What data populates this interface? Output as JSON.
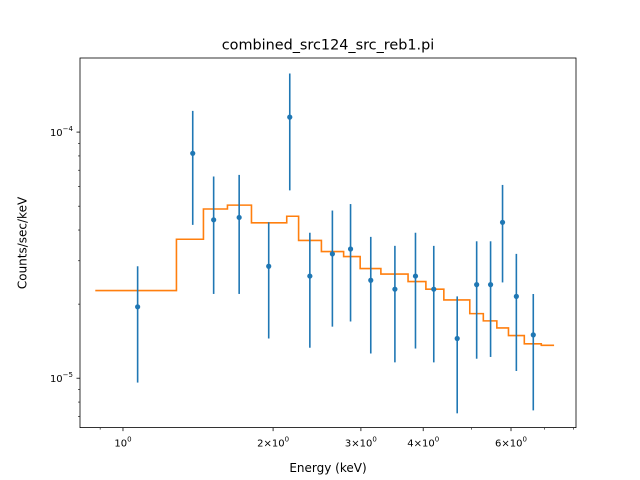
{
  "chart_data": {
    "type": "scatter",
    "title": "combined_src124_src_reb1.pi",
    "xlabel": "Energy (keV)",
    "ylabel": "Counts/sec/keV",
    "xscale": "log",
    "yscale": "log",
    "xlim": [
      0.82,
      8.1
    ],
    "ylim": [
      6.3e-06,
      0.0002
    ],
    "grid": false,
    "x_ticks": [
      {
        "value": 1.0,
        "label": "10^0",
        "base": "10",
        "exp": "0"
      },
      {
        "value": 2.0,
        "label": "2×10^0",
        "base": "2×10",
        "exp": "0"
      },
      {
        "value": 3.0,
        "label": "3×10^0",
        "base": "3×10",
        "exp": "0"
      },
      {
        "value": 4.0,
        "label": "4×10^0",
        "base": "4×10",
        "exp": "0"
      },
      {
        "value": 6.0,
        "label": "6×10^0",
        "base": "6×10",
        "exp": "0"
      }
    ],
    "x_minor_ticks": [
      0.9,
      5.0,
      7.0,
      8.0
    ],
    "y_ticks": [
      {
        "value": 1e-05,
        "label": "10^-5",
        "base": "10",
        "exp": "−5"
      },
      {
        "value": 0.0001,
        "label": "10^-4",
        "base": "10",
        "exp": "−4"
      }
    ],
    "y_minor_ticks": [
      7e-06,
      8e-06,
      9e-06,
      2e-05,
      3e-05,
      4e-05,
      5e-05,
      6e-05,
      7e-05,
      8e-05,
      9e-05
    ],
    "series": [
      {
        "kind": "errorbar",
        "color": "#1f77b4",
        "points": [
          {
            "x": 1.07,
            "y": 1.95e-05,
            "ylo": 9.6e-06,
            "yhi": 2.85e-05
          },
          {
            "x": 1.38,
            "y": 8.2e-05,
            "ylo": 4.2e-05,
            "yhi": 0.000122
          },
          {
            "x": 1.52,
            "y": 4.4e-05,
            "ylo": 2.2e-05,
            "yhi": 6.6e-05
          },
          {
            "x": 1.71,
            "y": 4.5e-05,
            "ylo": 2.2e-05,
            "yhi": 6.7e-05
          },
          {
            "x": 1.96,
            "y": 2.85e-05,
            "ylo": 1.45e-05,
            "yhi": 4.3e-05
          },
          {
            "x": 2.16,
            "y": 0.000115,
            "ylo": 5.8e-05,
            "yhi": 0.000173
          },
          {
            "x": 2.37,
            "y": 2.6e-05,
            "ylo": 1.33e-05,
            "yhi": 3.9e-05
          },
          {
            "x": 2.63,
            "y": 3.2e-05,
            "ylo": 1.62e-05,
            "yhi": 4.8e-05
          },
          {
            "x": 2.86,
            "y": 3.35e-05,
            "ylo": 1.7e-05,
            "yhi": 5.1e-05
          },
          {
            "x": 3.14,
            "y": 2.5e-05,
            "ylo": 1.26e-05,
            "yhi": 3.75e-05
          },
          {
            "x": 3.51,
            "y": 2.3e-05,
            "ylo": 1.16e-05,
            "yhi": 3.45e-05
          },
          {
            "x": 3.86,
            "y": 2.6e-05,
            "ylo": 1.32e-05,
            "yhi": 3.9e-05
          },
          {
            "x": 4.2,
            "y": 2.3e-05,
            "ylo": 1.16e-05,
            "yhi": 3.45e-05
          },
          {
            "x": 4.68,
            "y": 1.45e-05,
            "ylo": 7.2e-06,
            "yhi": 2.15e-05
          },
          {
            "x": 5.12,
            "y": 2.4e-05,
            "ylo": 1.2e-05,
            "yhi": 3.6e-05
          },
          {
            "x": 5.46,
            "y": 2.4e-05,
            "ylo": 1.22e-05,
            "yhi": 3.6e-05
          },
          {
            "x": 5.77,
            "y": 4.3e-05,
            "ylo": 2.45e-05,
            "yhi": 6.1e-05
          },
          {
            "x": 6.15,
            "y": 2.15e-05,
            "ylo": 1.07e-05,
            "yhi": 3.2e-05
          },
          {
            "x": 6.65,
            "y": 1.5e-05,
            "ylo": 7.4e-06,
            "yhi": 2.2e-05
          }
        ]
      },
      {
        "kind": "step",
        "color": "#ff7f0e",
        "bins": [
          {
            "lo": 0.88,
            "hi": 1.28,
            "y": 2.27e-05
          },
          {
            "lo": 1.28,
            "hi": 1.45,
            "y": 3.67e-05
          },
          {
            "lo": 1.45,
            "hi": 1.62,
            "y": 4.87e-05
          },
          {
            "lo": 1.62,
            "hi": 1.81,
            "y": 5.05e-05
          },
          {
            "lo": 1.81,
            "hi": 2.13,
            "y": 4.28e-05
          },
          {
            "lo": 2.13,
            "hi": 2.25,
            "y": 4.55e-05
          },
          {
            "lo": 2.25,
            "hi": 2.5,
            "y": 3.63e-05
          },
          {
            "lo": 2.5,
            "hi": 2.77,
            "y": 3.27e-05
          },
          {
            "lo": 2.77,
            "hi": 2.99,
            "y": 3.12e-05
          },
          {
            "lo": 2.99,
            "hi": 3.29,
            "y": 2.79e-05
          },
          {
            "lo": 3.29,
            "hi": 3.73,
            "y": 2.65e-05
          },
          {
            "lo": 3.73,
            "hi": 4.05,
            "y": 2.47e-05
          },
          {
            "lo": 4.05,
            "hi": 4.4,
            "y": 2.3e-05
          },
          {
            "lo": 4.4,
            "hi": 4.96,
            "y": 2.08e-05
          },
          {
            "lo": 4.96,
            "hi": 5.28,
            "y": 1.83e-05
          },
          {
            "lo": 5.28,
            "hi": 5.62,
            "y": 1.71e-05
          },
          {
            "lo": 5.62,
            "hi": 5.93,
            "y": 1.6e-05
          },
          {
            "lo": 5.93,
            "hi": 6.38,
            "y": 1.49e-05
          },
          {
            "lo": 6.38,
            "hi": 6.9,
            "y": 1.38e-05
          },
          {
            "lo": 6.9,
            "hi": 7.32,
            "y": 1.36e-05
          }
        ]
      }
    ]
  }
}
